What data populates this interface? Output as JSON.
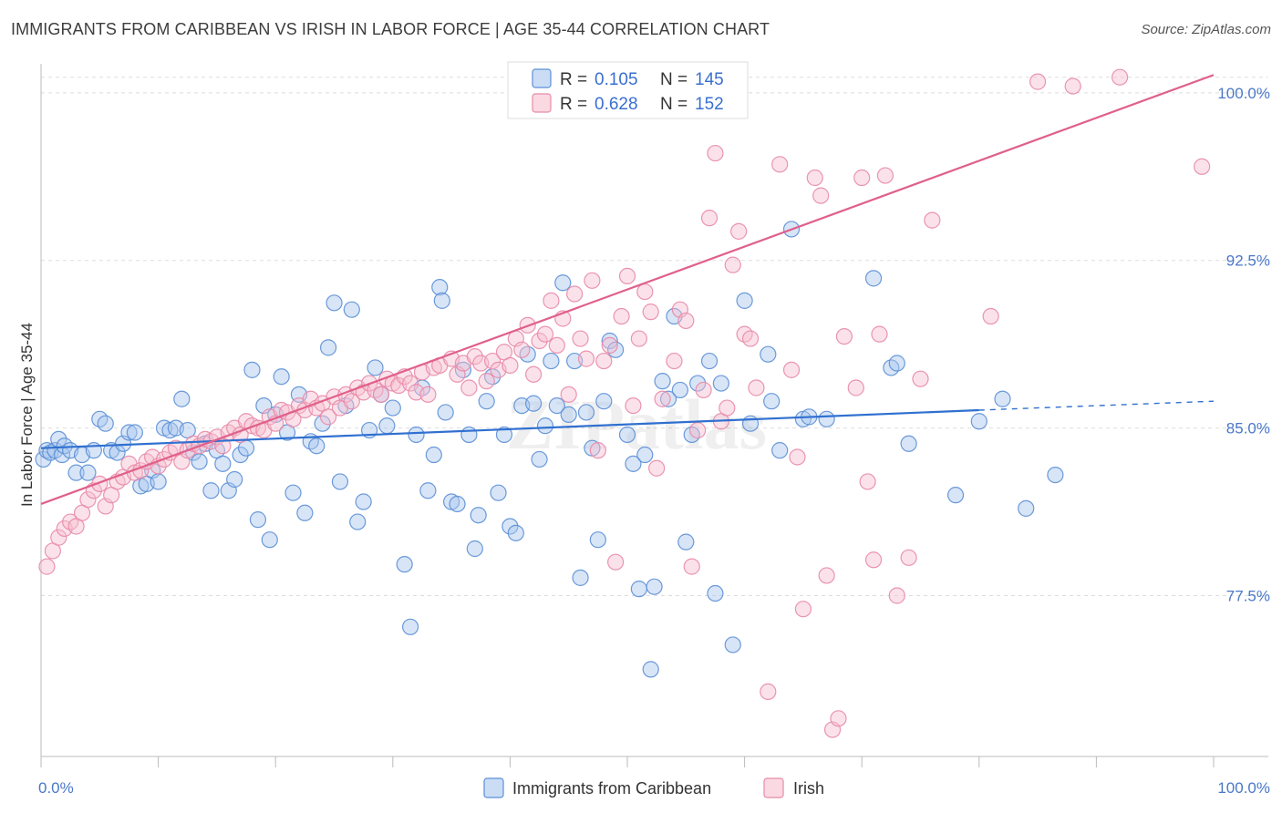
{
  "title": "IMMIGRANTS FROM CARIBBEAN VS IRISH IN LABOR FORCE | AGE 35-44 CORRELATION CHART",
  "source": "Source: ZipAtlas.com",
  "watermark": "ZIPatlas",
  "colors": {
    "blue_fill": "#a9c6ee",
    "blue_stroke": "#5b8fd6",
    "blue_line": "#3070d0",
    "pink_fill": "#f6bfd0",
    "pink_stroke": "#e88aa8",
    "pink_line": "#e0608a",
    "grid": "#dddddd",
    "tick_text": "#4a78c8"
  },
  "legend": {
    "r_label": "R =",
    "n_label": "N =",
    "entries": [
      {
        "r": "0.105",
        "n": "145"
      },
      {
        "r": "0.628",
        "n": "152"
      }
    ]
  },
  "bottom_legend": [
    "Immigrants from Caribbean",
    "Irish"
  ],
  "chart_data": {
    "type": "scatter",
    "title": "IMMIGRANTS FROM CARIBBEAN VS IRISH IN LABOR FORCE | AGE 35-44 CORRELATION CHART",
    "xlabel": "",
    "ylabel": "In Labor Force | Age 35-44",
    "xlim": [
      0,
      100
    ],
    "ylim": [
      70.3,
      101.3
    ],
    "x_tick_labels": [
      "0.0%",
      "100.0%"
    ],
    "y_ticks": [
      77.5,
      85.0,
      92.5,
      100.0
    ],
    "y_tick_labels": [
      "77.5%",
      "85.0%",
      "92.5%",
      "100.0%"
    ],
    "grid": true,
    "legend_position": "top-center",
    "series": [
      {
        "name": "Immigrants from Caribbean",
        "r": 0.105,
        "n": 145,
        "trend": {
          "x0": 0,
          "y0": 84.1,
          "x1": 80,
          "y1": 85.8,
          "dashed_to_x": 100,
          "dashed_to_y": 86.2
        },
        "points": [
          [
            0.2,
            83.6
          ],
          [
            0.5,
            84.0
          ],
          [
            0.8,
            83.9
          ],
          [
            1.2,
            84.0
          ],
          [
            1.5,
            84.5
          ],
          [
            1.8,
            83.8
          ],
          [
            2.0,
            84.2
          ],
          [
            2.5,
            84.0
          ],
          [
            3.0,
            83.0
          ],
          [
            3.5,
            83.8
          ],
          [
            4.0,
            83.0
          ],
          [
            4.5,
            84.0
          ],
          [
            5.0,
            85.4
          ],
          [
            5.5,
            85.2
          ],
          [
            6.0,
            84.0
          ],
          [
            6.5,
            83.9
          ],
          [
            7.0,
            84.3
          ],
          [
            7.5,
            84.8
          ],
          [
            8.0,
            84.8
          ],
          [
            8.5,
            82.4
          ],
          [
            9.0,
            82.5
          ],
          [
            9.5,
            83.1
          ],
          [
            10.0,
            82.6
          ],
          [
            10.5,
            85.0
          ],
          [
            11.0,
            84.9
          ],
          [
            11.5,
            85.0
          ],
          [
            12.0,
            86.3
          ],
          [
            12.5,
            84.9
          ],
          [
            13.0,
            83.9
          ],
          [
            13.5,
            83.5
          ],
          [
            14.0,
            84.3
          ],
          [
            14.5,
            82.2
          ],
          [
            15.0,
            84.0
          ],
          [
            15.5,
            83.4
          ],
          [
            16.0,
            82.2
          ],
          [
            16.5,
            82.7
          ],
          [
            17.0,
            83.8
          ],
          [
            17.5,
            84.1
          ],
          [
            18.0,
            87.6
          ],
          [
            18.5,
            80.9
          ],
          [
            19.0,
            86.0
          ],
          [
            19.5,
            80.0
          ],
          [
            20.0,
            85.6
          ],
          [
            20.5,
            87.3
          ],
          [
            21.0,
            84.8
          ],
          [
            21.5,
            82.1
          ],
          [
            22.0,
            86.5
          ],
          [
            22.5,
            81.2
          ],
          [
            23.0,
            84.4
          ],
          [
            23.5,
            84.2
          ],
          [
            24.0,
            85.2
          ],
          [
            24.5,
            88.6
          ],
          [
            25.0,
            90.6
          ],
          [
            25.5,
            82.6
          ],
          [
            26.0,
            86.0
          ],
          [
            26.5,
            90.3
          ],
          [
            27.0,
            80.8
          ],
          [
            27.5,
            81.7
          ],
          [
            28.0,
            84.9
          ],
          [
            28.5,
            87.7
          ],
          [
            29.0,
            86.5
          ],
          [
            29.5,
            85.1
          ],
          [
            30.0,
            85.9
          ],
          [
            31.0,
            78.9
          ],
          [
            31.5,
            76.1
          ],
          [
            32.0,
            84.7
          ],
          [
            32.5,
            86.8
          ],
          [
            33.0,
            82.2
          ],
          [
            33.5,
            83.8
          ],
          [
            34.0,
            91.3
          ],
          [
            34.2,
            90.7
          ],
          [
            34.5,
            85.7
          ],
          [
            35.0,
            81.7
          ],
          [
            35.5,
            81.6
          ],
          [
            36.0,
            87.6
          ],
          [
            36.5,
            84.7
          ],
          [
            37.0,
            79.6
          ],
          [
            37.3,
            81.1
          ],
          [
            38.0,
            86.2
          ],
          [
            38.5,
            87.3
          ],
          [
            39.0,
            82.1
          ],
          [
            39.5,
            84.7
          ],
          [
            40.0,
            80.6
          ],
          [
            40.5,
            80.3
          ],
          [
            41.0,
            86.0
          ],
          [
            41.5,
            88.3
          ],
          [
            42.0,
            86.1
          ],
          [
            42.5,
            83.6
          ],
          [
            43.0,
            85.1
          ],
          [
            43.5,
            88.0
          ],
          [
            44.0,
            86.0
          ],
          [
            44.5,
            91.5
          ],
          [
            45.0,
            85.6
          ],
          [
            45.5,
            88.0
          ],
          [
            46.0,
            78.3
          ],
          [
            46.5,
            85.7
          ],
          [
            47.0,
            84.1
          ],
          [
            47.5,
            80.0
          ],
          [
            48.0,
            86.2
          ],
          [
            48.5,
            88.9
          ],
          [
            49.0,
            88.5
          ],
          [
            50.0,
            84.7
          ],
          [
            50.5,
            83.4
          ],
          [
            51.0,
            77.8
          ],
          [
            51.5,
            83.8
          ],
          [
            52.0,
            74.2
          ],
          [
            52.3,
            77.9
          ],
          [
            53.0,
            87.1
          ],
          [
            53.5,
            86.3
          ],
          [
            54.0,
            90.0
          ],
          [
            54.5,
            86.7
          ],
          [
            55.0,
            79.9
          ],
          [
            55.5,
            84.7
          ],
          [
            56.0,
            87.0
          ],
          [
            57.0,
            88.0
          ],
          [
            57.5,
            77.6
          ],
          [
            58.0,
            87.0
          ],
          [
            59.0,
            75.3
          ],
          [
            60.0,
            90.7
          ],
          [
            60.5,
            85.2
          ],
          [
            62.0,
            88.3
          ],
          [
            62.3,
            86.2
          ],
          [
            63.0,
            84.0
          ],
          [
            64.0,
            93.9
          ],
          [
            65.0,
            85.4
          ],
          [
            65.5,
            85.5
          ],
          [
            67.0,
            85.4
          ],
          [
            71.0,
            91.7
          ],
          [
            72.5,
            87.7
          ],
          [
            73.0,
            87.9
          ],
          [
            74.0,
            84.3
          ],
          [
            78.0,
            82.0
          ],
          [
            80.0,
            85.3
          ],
          [
            82.0,
            86.3
          ],
          [
            84.0,
            81.4
          ],
          [
            86.5,
            82.9
          ]
        ]
      },
      {
        "name": "Irish",
        "r": 0.628,
        "n": 152,
        "trend": {
          "x0": 0,
          "y0": 81.6,
          "x1": 100,
          "y1": 100.8
        },
        "points": [
          [
            0.5,
            78.8
          ],
          [
            1.0,
            79.5
          ],
          [
            1.5,
            80.1
          ],
          [
            2.0,
            80.5
          ],
          [
            2.5,
            80.8
          ],
          [
            3.0,
            80.6
          ],
          [
            3.5,
            81.2
          ],
          [
            4.0,
            81.8
          ],
          [
            4.5,
            82.2
          ],
          [
            5.0,
            82.5
          ],
          [
            5.5,
            81.5
          ],
          [
            6.0,
            82.0
          ],
          [
            6.5,
            82.6
          ],
          [
            7.0,
            82.8
          ],
          [
            7.5,
            83.4
          ],
          [
            8.0,
            83.0
          ],
          [
            8.5,
            83.1
          ],
          [
            9.0,
            83.5
          ],
          [
            9.5,
            83.7
          ],
          [
            10.0,
            83.3
          ],
          [
            10.5,
            83.6
          ],
          [
            11.0,
            83.9
          ],
          [
            11.5,
            84.1
          ],
          [
            12.0,
            83.5
          ],
          [
            12.5,
            84.0
          ],
          [
            13.0,
            84.3
          ],
          [
            13.5,
            84.2
          ],
          [
            14.0,
            84.5
          ],
          [
            14.5,
            84.4
          ],
          [
            15.0,
            84.6
          ],
          [
            15.5,
            84.2
          ],
          [
            16.0,
            84.8
          ],
          [
            16.5,
            85.0
          ],
          [
            17.0,
            84.7
          ],
          [
            17.5,
            85.3
          ],
          [
            18.0,
            85.1
          ],
          [
            18.5,
            85.0
          ],
          [
            19.0,
            84.9
          ],
          [
            19.5,
            85.5
          ],
          [
            20.0,
            85.2
          ],
          [
            20.5,
            85.8
          ],
          [
            21.0,
            85.7
          ],
          [
            21.5,
            85.4
          ],
          [
            22.0,
            86.0
          ],
          [
            22.5,
            85.8
          ],
          [
            23.0,
            86.3
          ],
          [
            23.5,
            85.9
          ],
          [
            24.0,
            86.1
          ],
          [
            24.5,
            85.5
          ],
          [
            25.0,
            86.4
          ],
          [
            25.5,
            85.9
          ],
          [
            26.0,
            86.5
          ],
          [
            26.5,
            86.2
          ],
          [
            27.0,
            86.8
          ],
          [
            27.5,
            86.6
          ],
          [
            28.0,
            87.0
          ],
          [
            28.5,
            86.7
          ],
          [
            29.0,
            86.5
          ],
          [
            29.5,
            87.2
          ],
          [
            30.0,
            87.0
          ],
          [
            30.5,
            86.9
          ],
          [
            31.0,
            87.3
          ],
          [
            31.5,
            87.0
          ],
          [
            32.0,
            86.6
          ],
          [
            32.5,
            87.5
          ],
          [
            33.0,
            86.5
          ],
          [
            33.5,
            87.7
          ],
          [
            34.0,
            87.8
          ],
          [
            35.0,
            88.1
          ],
          [
            35.5,
            87.4
          ],
          [
            36.0,
            87.9
          ],
          [
            36.5,
            86.8
          ],
          [
            37.0,
            88.2
          ],
          [
            37.5,
            87.9
          ],
          [
            38.0,
            87.1
          ],
          [
            38.5,
            88.0
          ],
          [
            39.0,
            87.6
          ],
          [
            39.5,
            88.4
          ],
          [
            40.0,
            87.8
          ],
          [
            40.5,
            89.0
          ],
          [
            41.0,
            88.5
          ],
          [
            41.5,
            89.6
          ],
          [
            42.0,
            87.4
          ],
          [
            42.5,
            88.9
          ],
          [
            43.0,
            89.2
          ],
          [
            43.5,
            90.7
          ],
          [
            44.0,
            88.7
          ],
          [
            44.5,
            89.9
          ],
          [
            45.0,
            86.5
          ],
          [
            45.5,
            91.0
          ],
          [
            46.0,
            89.0
          ],
          [
            46.5,
            88.1
          ],
          [
            47.0,
            91.6
          ],
          [
            47.5,
            84.0
          ],
          [
            48.0,
            88.0
          ],
          [
            48.5,
            88.7
          ],
          [
            49.0,
            79.0
          ],
          [
            49.5,
            90.0
          ],
          [
            50.0,
            91.8
          ],
          [
            50.5,
            86.0
          ],
          [
            51.0,
            89.0
          ],
          [
            51.5,
            91.1
          ],
          [
            52.0,
            90.2
          ],
          [
            52.5,
            83.2
          ],
          [
            53.0,
            86.3
          ],
          [
            54.0,
            88.0
          ],
          [
            54.5,
            90.3
          ],
          [
            55.0,
            89.8
          ],
          [
            55.5,
            78.8
          ],
          [
            56.0,
            84.9
          ],
          [
            56.5,
            86.7
          ],
          [
            57.0,
            94.4
          ],
          [
            57.5,
            97.3
          ],
          [
            58.0,
            85.3
          ],
          [
            58.5,
            85.9
          ],
          [
            59.0,
            92.3
          ],
          [
            59.5,
            93.8
          ],
          [
            60.0,
            89.2
          ],
          [
            60.5,
            89.0
          ],
          [
            61.0,
            86.8
          ],
          [
            62.0,
            73.2
          ],
          [
            63.0,
            96.8
          ],
          [
            64.0,
            87.6
          ],
          [
            64.5,
            83.7
          ],
          [
            65.0,
            76.9
          ],
          [
            66.0,
            96.2
          ],
          [
            66.5,
            95.4
          ],
          [
            67.0,
            78.4
          ],
          [
            67.5,
            71.5
          ],
          [
            68.0,
            72.0
          ],
          [
            68.5,
            89.1
          ],
          [
            69.5,
            86.8
          ],
          [
            70.0,
            96.2
          ],
          [
            70.5,
            82.6
          ],
          [
            71.0,
            79.1
          ],
          [
            71.5,
            89.2
          ],
          [
            72.0,
            96.3
          ],
          [
            73.0,
            77.5
          ],
          [
            74.0,
            79.2
          ],
          [
            75.0,
            87.2
          ],
          [
            76.0,
            94.3
          ],
          [
            81.0,
            90.0
          ],
          [
            85.0,
            100.5
          ],
          [
            88.0,
            100.3
          ],
          [
            92.0,
            100.7
          ],
          [
            99.0,
            96.7
          ]
        ]
      }
    ]
  }
}
